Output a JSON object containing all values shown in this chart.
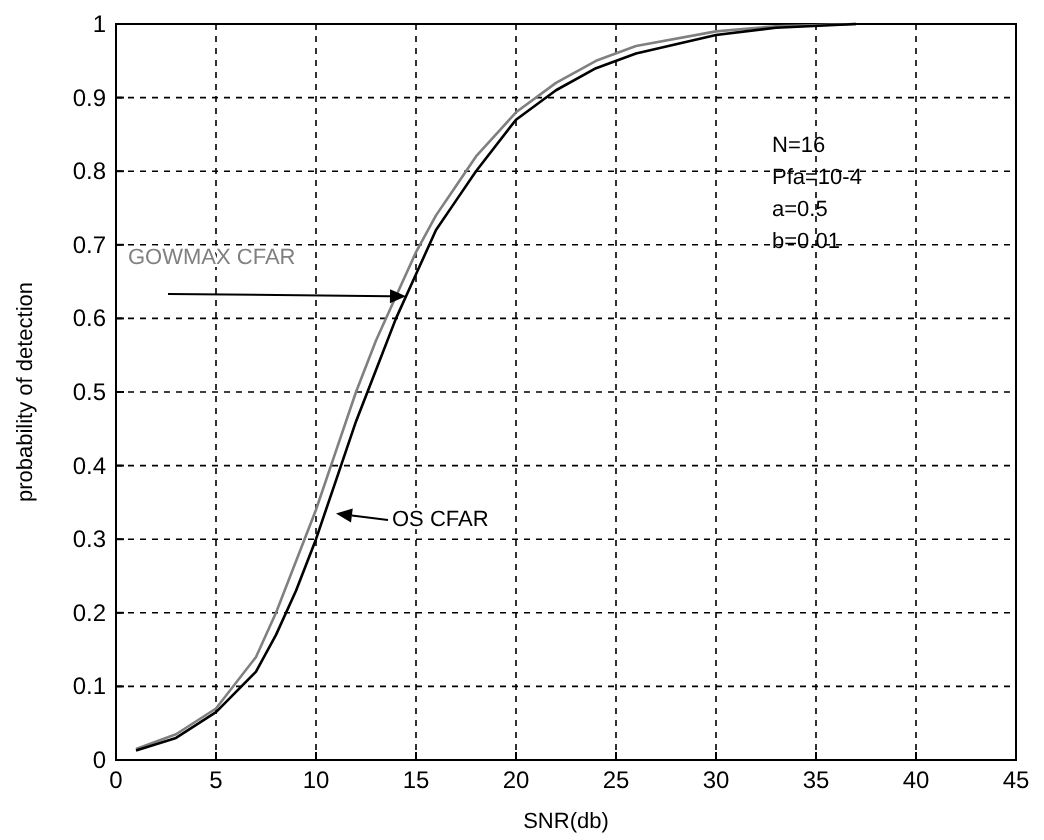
{
  "chart_data": {
    "type": "line",
    "xlabel": "SNR(db)",
    "ylabel": "probability of detection",
    "xlim": [
      0,
      45
    ],
    "xticks": [
      0,
      5,
      10,
      15,
      20,
      25,
      30,
      35,
      40,
      45
    ],
    "ylim": [
      0,
      1
    ],
    "yticks": [
      0,
      0.1,
      0.2,
      0.3,
      0.4,
      0.5,
      0.6,
      0.7,
      0.8,
      0.9,
      1
    ],
    "grid": true,
    "line_style": "solid",
    "series": [
      {
        "name": "GOWMAX CFAR",
        "color": "#808080",
        "x": [
          1,
          3,
          5,
          7,
          8,
          9,
          10,
          11,
          12,
          13,
          14,
          15,
          16,
          17,
          18,
          20,
          22,
          24,
          26,
          30,
          33,
          37
        ],
        "values": [
          0.015,
          0.035,
          0.07,
          0.14,
          0.2,
          0.27,
          0.34,
          0.42,
          0.5,
          0.57,
          0.63,
          0.69,
          0.74,
          0.78,
          0.82,
          0.88,
          0.92,
          0.95,
          0.97,
          0.99,
          0.997,
          1.0
        ]
      },
      {
        "name": "OS CFAR",
        "color": "#000000",
        "x": [
          1,
          3,
          5,
          7,
          8,
          9,
          10,
          11,
          12,
          13,
          14,
          15,
          16,
          17,
          18,
          20,
          22,
          24,
          26,
          30,
          33,
          37
        ],
        "values": [
          0.013,
          0.03,
          0.065,
          0.12,
          0.17,
          0.23,
          0.3,
          0.38,
          0.46,
          0.53,
          0.6,
          0.66,
          0.72,
          0.76,
          0.8,
          0.87,
          0.91,
          0.94,
          0.96,
          0.985,
          0.995,
          1.0
        ]
      }
    ],
    "annotations": [
      "N=16",
      "Pfa=10-4",
      "a=0.5",
      "b=0.01"
    ]
  }
}
